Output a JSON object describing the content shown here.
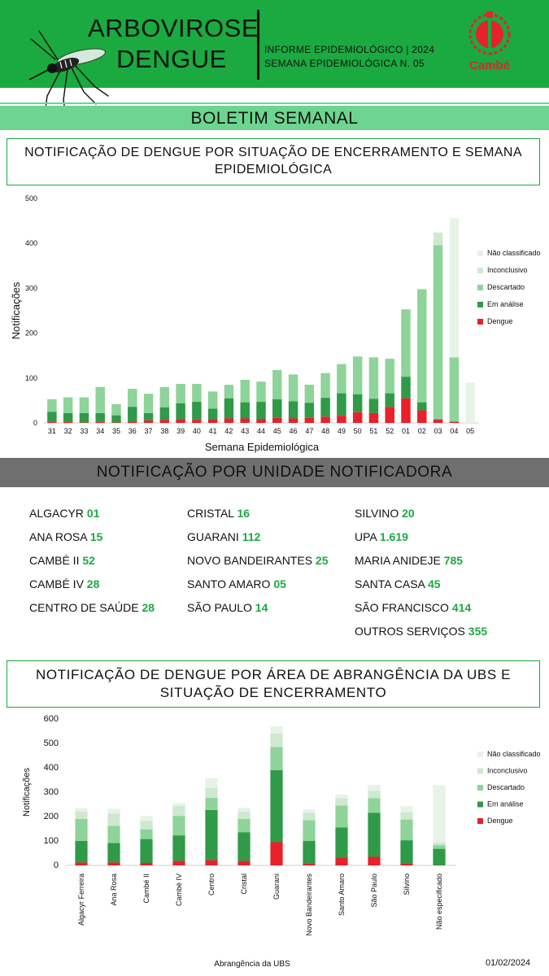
{
  "header": {
    "title_line1": "ARBOVIROSE",
    "title_line2": "DENGUE",
    "info_line1": "INFORME EPIDEMIOLÓGICO | 2024",
    "info_line2": "SEMANA EPIDEMIOLÓGICA  N. 05",
    "logo_text": "Cambé"
  },
  "bulletin_title": "BOLETIM SEMANAL",
  "section_units_title": "NOTIFICAÇÃO POR UNIDADE NOTIFICADORA",
  "units": [
    [
      {
        "name": "ALGACYR",
        "value": "01"
      },
      {
        "name": "ANA ROSA",
        "value": "15"
      },
      {
        "name": "CAMBÉ II",
        "value": "52"
      },
      {
        "name": "CAMBÉ IV",
        "value": "28"
      },
      {
        "name": "CENTRO DE SAÚDE",
        "value": "28"
      }
    ],
    [
      {
        "name": "CRISTAL",
        "value": "16"
      },
      {
        "name": "GUARANI",
        "value": "112"
      },
      {
        "name": "NOVO BANDEIRANTES",
        "value": "25"
      },
      {
        "name": "SANTO AMARO",
        "value": "05"
      },
      {
        "name": "SÃO PAULO",
        "value": "14"
      }
    ],
    [
      {
        "name": "SILVINO",
        "value": "20"
      },
      {
        "name": "UPA",
        "value": "1.619"
      },
      {
        "name": "MARIA ANIDEJE",
        "value": "785"
      },
      {
        "name": "SANTA CASA",
        "value": "45"
      },
      {
        "name": "SÃO FRANCISCO",
        "value": "414"
      },
      {
        "name": "OUTROS SERVIÇOS",
        "value": "355"
      }
    ]
  ],
  "date": "01/02/2024",
  "colors": {
    "nao_classificado": "#e7f3e7",
    "inconclusivo": "#cfe8cf",
    "descartado": "#8ed49a",
    "em_analise": "#2f9a47",
    "dengue": "#e8212a"
  },
  "chart_data": [
    {
      "type": "bar",
      "stacked": true,
      "title": "NOTIFICAÇÃO DE DENGUE POR SITUAÇÃO DE ENCERRAMENTO E SEMANA EPIDEMIOLÓGICA",
      "xlabel": "Semana Epidemiológica",
      "ylabel": "Notificações",
      "ylim": [
        0,
        500
      ],
      "yticks": [
        0,
        100,
        200,
        300,
        400,
        500
      ],
      "legend": "right",
      "categories": [
        "31",
        "32",
        "33",
        "34",
        "35",
        "36",
        "37",
        "38",
        "39",
        "40",
        "41",
        "42",
        "43",
        "44",
        "45",
        "46",
        "47",
        "48",
        "49",
        "50",
        "51",
        "52",
        "01",
        "02",
        "03",
        "04",
        "05"
      ],
      "series": [
        {
          "name": "Dengue",
          "values": [
            2,
            2,
            1,
            2,
            1,
            3,
            6,
            7,
            8,
            7,
            8,
            10,
            10,
            9,
            11,
            10,
            11,
            14,
            16,
            24,
            22,
            36,
            55,
            28,
            8,
            3,
            0
          ]
        },
        {
          "name": "Em análise",
          "values": [
            23,
            20,
            21,
            20,
            16,
            33,
            16,
            28,
            36,
            40,
            24,
            45,
            36,
            38,
            42,
            38,
            34,
            42,
            50,
            40,
            32,
            30,
            48,
            18,
            0,
            0,
            0
          ]
        },
        {
          "name": "Descartado",
          "values": [
            28,
            35,
            35,
            58,
            25,
            40,
            43,
            45,
            43,
            40,
            38,
            30,
            50,
            45,
            65,
            60,
            40,
            55,
            65,
            84,
            92,
            77,
            150,
            252,
            388,
            143,
            0
          ]
        },
        {
          "name": "Inconclusivo",
          "values": [
            0,
            0,
            0,
            0,
            0,
            0,
            0,
            0,
            0,
            0,
            0,
            0,
            0,
            0,
            0,
            0,
            0,
            0,
            0,
            0,
            0,
            0,
            0,
            0,
            28,
            0,
            0
          ]
        },
        {
          "name": "Não classificado",
          "values": [
            0,
            0,
            0,
            0,
            0,
            0,
            0,
            0,
            0,
            0,
            0,
            0,
            0,
            0,
            0,
            0,
            0,
            0,
            0,
            0,
            0,
            0,
            0,
            0,
            0,
            310,
            90
          ]
        }
      ]
    },
    {
      "type": "bar",
      "stacked": true,
      "title": "NOTIFICAÇÃO DE DENGUE POR ÁREA DE ABRANGÊNCIA DA UBS E SITUAÇÃO DE ENCERRAMENTO",
      "xlabel": "Abrangência da UBS",
      "ylabel": "Notificações",
      "ylim": [
        0,
        600
      ],
      "yticks": [
        0,
        100,
        200,
        300,
        400,
        500,
        600
      ],
      "legend": "right",
      "categories": [
        "Algacyr Ferreira",
        "Ana Rosa",
        "Cambé II",
        "Cambé IV",
        "Centro",
        "Cristal",
        "Guarani",
        "Novo Bandeirantes",
        "Santo Amaro",
        "São Paulo",
        "Silvino",
        "Não especificado"
      ],
      "series": [
        {
          "name": "Dengue",
          "values": [
            12,
            12,
            10,
            18,
            22,
            18,
            95,
            8,
            30,
            35,
            8,
            0
          ]
        },
        {
          "name": "Em análise",
          "values": [
            88,
            80,
            98,
            105,
            205,
            118,
            295,
            92,
            125,
            180,
            95,
            68
          ]
        },
        {
          "name": "Descartado",
          "values": [
            90,
            70,
            40,
            80,
            50,
            55,
            95,
            85,
            90,
            60,
            85,
            15
          ]
        },
        {
          "name": "Inconclusivo",
          "values": [
            30,
            50,
            35,
            40,
            40,
            30,
            55,
            30,
            30,
            30,
            30,
            10
          ]
        },
        {
          "name": "Não classificado",
          "values": [
            15,
            20,
            20,
            12,
            40,
            15,
            30,
            15,
            15,
            25,
            25,
            235
          ]
        }
      ]
    }
  ]
}
